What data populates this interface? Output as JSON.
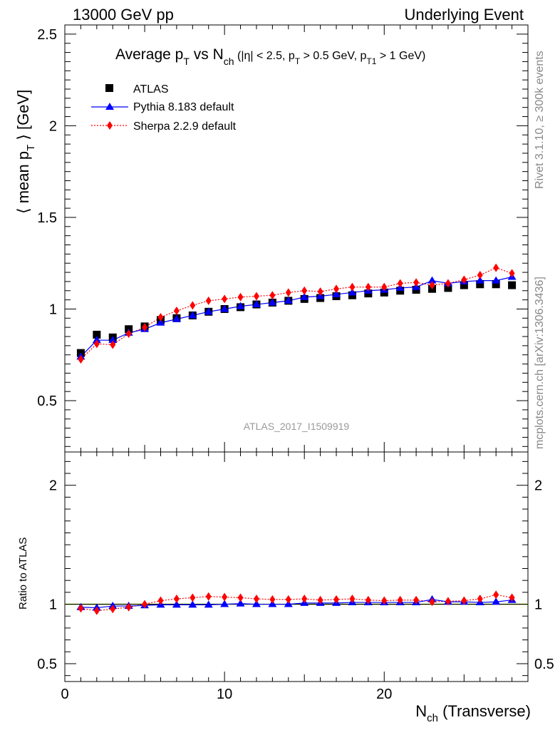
{
  "header": {
    "left": "13000 GeV pp",
    "right": "Underlying Event"
  },
  "side_labels": {
    "rivet": "Rivet 3.1.10, ≥ 300k events",
    "mcplots": "mcplots.cern.ch [arXiv:1306.3436]"
  },
  "watermark": "ATLAS_2017_I1509919",
  "title": {
    "main": "Average p",
    "main_sub": "T",
    "vs": " vs N",
    "vs_sub": "ch",
    "cuts": " (|η| < 2.5, p",
    "cuts_sub1": "T",
    "cuts2": " > 0.5 GeV, p",
    "cuts_sub2": "T1",
    "cuts3": " > 1 GeV)"
  },
  "colors": {
    "atlas": "#000000",
    "pythia": "#0000ff",
    "sherpa": "#ff0000",
    "band": "#ccff33"
  },
  "chart_data": [
    {
      "type": "scatter",
      "panel": "main",
      "title": "Average pT vs Nch (|η| < 2.5, pT > 0.5 GeV, pT1 > 1 GeV)",
      "ylabel": "⟨ mean p_T ⟩ [GeV]",
      "xlim": [
        0,
        29
      ],
      "ylim": [
        0.22,
        2.55
      ],
      "yticks": [
        0.5,
        1,
        1.5,
        2,
        2.5
      ],
      "ytick_labels": [
        "0.5",
        "1",
        "1.5",
        "2",
        "2.5"
      ],
      "x": [
        1,
        2,
        3,
        4,
        5,
        6,
        7,
        8,
        9,
        10,
        11,
        12,
        13,
        14,
        15,
        16,
        17,
        18,
        19,
        20,
        21,
        22,
        23,
        24,
        25,
        26,
        27,
        28
      ],
      "series": [
        {
          "name": "ATLAS",
          "marker": "square",
          "values": [
            0.76,
            0.86,
            0.845,
            0.89,
            0.905,
            0.94,
            0.95,
            0.965,
            0.985,
            1.0,
            1.01,
            1.025,
            1.035,
            1.045,
            1.055,
            1.06,
            1.07,
            1.075,
            1.085,
            1.09,
            1.1,
            1.105,
            1.11,
            1.115,
            1.13,
            1.135,
            1.135,
            1.13
          ]
        },
        {
          "name": "Pythia 8.183 default",
          "marker": "triangle",
          "values": [
            0.74,
            0.83,
            0.83,
            0.87,
            0.89,
            0.925,
            0.945,
            0.965,
            0.985,
            1.0,
            1.015,
            1.025,
            1.035,
            1.045,
            1.065,
            1.07,
            1.08,
            1.09,
            1.1,
            1.105,
            1.115,
            1.12,
            1.155,
            1.14,
            1.15,
            1.155,
            1.155,
            1.175
          ]
        },
        {
          "name": "Sherpa 2.2.9 default",
          "marker": "diamond",
          "values": [
            0.725,
            0.81,
            0.805,
            0.865,
            0.9,
            0.955,
            0.99,
            1.02,
            1.045,
            1.055,
            1.065,
            1.07,
            1.075,
            1.09,
            1.1,
            1.095,
            1.11,
            1.12,
            1.12,
            1.12,
            1.14,
            1.145,
            1.13,
            1.14,
            1.16,
            1.185,
            1.225,
            1.195
          ]
        }
      ],
      "legend": [
        "ATLAS",
        "Pythia 8.183 default",
        "Sherpa 2.2.9 default"
      ],
      "legend_position": "top-left"
    },
    {
      "type": "scatter",
      "panel": "ratio",
      "ylabel": "Ratio to ATLAS",
      "xlabel": "N_ch (Transverse)",
      "xlim": [
        0,
        29
      ],
      "ylim": [
        0.35,
        2.28
      ],
      "xticks": [
        0,
        10,
        20
      ],
      "xtick_labels": [
        "0",
        "10",
        "20"
      ],
      "yticks": [
        0.5,
        1,
        2
      ],
      "ytick_labels": [
        "0.5",
        "1",
        "2"
      ],
      "ytick_labels_right": [
        "0.5",
        "1",
        "2"
      ],
      "x": [
        1,
        2,
        3,
        4,
        5,
        6,
        7,
        8,
        9,
        10,
        11,
        12,
        13,
        14,
        15,
        16,
        17,
        18,
        19,
        20,
        21,
        22,
        23,
        24,
        25,
        26,
        27,
        28
      ],
      "series": [
        {
          "name": "Pythia 8.183 default",
          "values": [
            0.975,
            0.97,
            0.985,
            0.985,
            0.99,
            0.995,
            0.995,
            0.995,
            0.995,
            1.0,
            1.005,
            1.0,
            1.0,
            1.0,
            1.01,
            1.01,
            1.01,
            1.015,
            1.015,
            1.015,
            1.015,
            1.015,
            1.04,
            1.02,
            1.02,
            1.015,
            1.02,
            1.035
          ]
        },
        {
          "name": "Sherpa 2.2.9 default",
          "values": [
            0.965,
            0.945,
            0.96,
            0.975,
            1.0,
            1.03,
            1.045,
            1.055,
            1.065,
            1.06,
            1.055,
            1.045,
            1.04,
            1.04,
            1.045,
            1.035,
            1.04,
            1.045,
            1.035,
            1.03,
            1.035,
            1.035,
            1.02,
            1.025,
            1.03,
            1.045,
            1.08,
            1.055
          ]
        }
      ]
    }
  ]
}
